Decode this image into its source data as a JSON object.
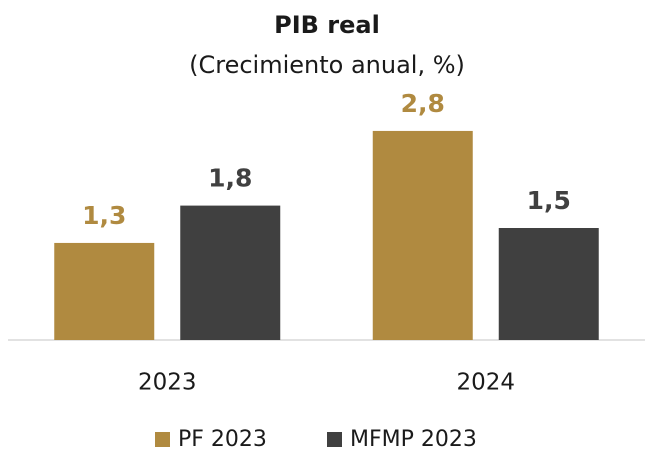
{
  "chart_data": {
    "type": "bar",
    "title": "PIB real",
    "subtitle": "(Crecimiento anual, %)",
    "categories": [
      "2023",
      "2024"
    ],
    "series": [
      {
        "name": "PF 2023",
        "color": "#b08a40",
        "values": [
          1.3,
          2.8
        ],
        "value_labels": [
          "1,3",
          "2,8"
        ]
      },
      {
        "name": "MFMP 2023",
        "color": "#404040",
        "values": [
          1.8,
          1.5
        ],
        "value_labels": [
          "1,8",
          "1,5"
        ]
      }
    ],
    "ylim": [
      0,
      3
    ],
    "grid": false,
    "legend": "bottom"
  }
}
